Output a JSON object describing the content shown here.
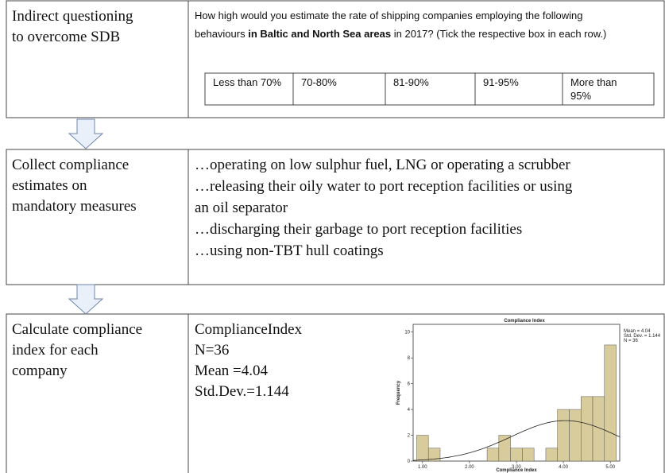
{
  "rows": [
    {
      "label": [
        "Indirect questioning",
        "to overcome SDB"
      ],
      "question": [
        [
          "How high would you estimate the rate of shipping companies employing the following"
        ],
        [
          "behaviours ",
          "in Baltic and North Sea areas",
          " in 2017?  (Tick the respective box in each row.)"
        ]
      ],
      "options": [
        [
          "Less than 70%"
        ],
        [
          "70-80%"
        ],
        [
          "81-90%"
        ],
        [
          "91-95%"
        ],
        [
          "More than",
          "95%"
        ]
      ]
    },
    {
      "label": [
        "Collect compliance",
        "estimates on",
        "mandatory measures"
      ],
      "lines": [
        "…operating on low sulphur fuel, LNG or operating a scrubber",
        "…releasing their oily water to port reception facilities or using",
        "an oil separator",
        "…discharging their garbage to port reception facilities",
        "…using non-TBT hull coatings"
      ]
    },
    {
      "label": [
        "Calculate compliance",
        "index for each",
        "company"
      ],
      "stats": [
        "ComplianceIndex",
        "N=36",
        "Mean =4.04",
        "Std.Dev.=1.144"
      ]
    }
  ],
  "chart_data": {
    "type": "histogram",
    "title": "Compliance Index",
    "x_label": "Compliance Index",
    "y_label": "Frequency",
    "bins": [
      0.875,
      1.125,
      1.375,
      1.625,
      1.875,
      2.125,
      2.375,
      2.625,
      2.875,
      3.125,
      3.375,
      3.625,
      3.875,
      4.125,
      4.375,
      4.625,
      4.875,
      5.125
    ],
    "values": [
      2,
      1,
      0,
      0,
      0,
      0,
      1,
      2,
      1,
      1,
      0,
      1,
      4,
      4,
      5,
      5,
      9
    ],
    "color": "#d8cc9c",
    "xlim": [
      0.8,
      5.2
    ],
    "ylim": [
      0,
      10.6
    ],
    "xticks": [
      {
        "value": 1,
        "label": "1.00"
      },
      {
        "value": 2,
        "label": "2.00"
      },
      {
        "value": 3,
        "label": "3.00"
      },
      {
        "value": 4,
        "label": "4.00"
      },
      {
        "value": 5,
        "label": "5.00"
      }
    ],
    "yticks": [
      0,
      2,
      4,
      6,
      8,
      10
    ],
    "legend": [
      {
        "label": "Mean = 4.04",
        "value": 4.04
      },
      {
        "label": "Std. Dev. = 1.144",
        "value": 1.144
      },
      {
        "label": "N = 36",
        "value": 36
      }
    ]
  }
}
